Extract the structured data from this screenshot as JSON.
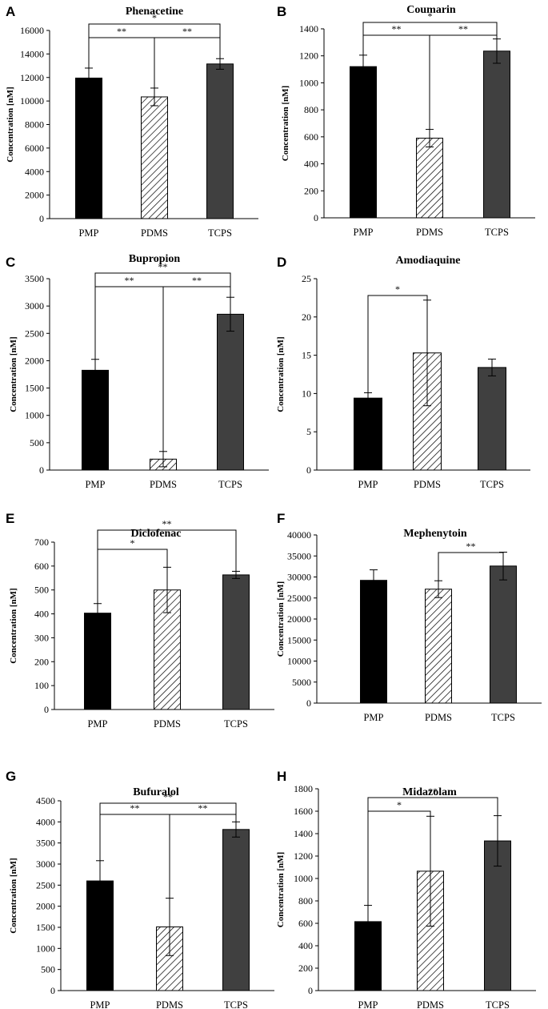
{
  "figure": {
    "category_colors": [
      "#000000",
      "#ffffff",
      "#404040"
    ],
    "hatch_color": "#000000"
  },
  "chart_data": [
    {
      "panel": "A",
      "type": "bar",
      "title": "Phenacetine",
      "ylabel": "Concentration  [nM]",
      "categories": [
        "PMP",
        "PDMS",
        "TCPS"
      ],
      "values": [
        11950,
        10350,
        13150
      ],
      "errors": [
        850,
        750,
        450
      ],
      "ylim": [
        0,
        16000
      ],
      "yticks": [
        0,
        2000,
        4000,
        6000,
        8000,
        10000,
        12000,
        14000,
        16000
      ],
      "significance": [
        {
          "from": 0,
          "to": 2,
          "label": "*"
        },
        {
          "from": 0,
          "to": 1,
          "label": "**"
        },
        {
          "from": 1,
          "to": 2,
          "label": "**"
        }
      ]
    },
    {
      "panel": "B",
      "type": "bar",
      "title": "Coumarin",
      "ylabel": "Concentration  [nM]",
      "categories": [
        "PMP",
        "PDMS",
        "TCPS"
      ],
      "values": [
        1120,
        590,
        1235
      ],
      "errors": [
        85,
        65,
        90
      ],
      "ylim": [
        0,
        1400
      ],
      "yticks": [
        0,
        200,
        400,
        600,
        800,
        1000,
        1200,
        1400
      ],
      "significance": [
        {
          "from": 0,
          "to": 2,
          "label": "*"
        },
        {
          "from": 0,
          "to": 1,
          "label": "**"
        },
        {
          "from": 1,
          "to": 2,
          "label": "**"
        }
      ]
    },
    {
      "panel": "C",
      "type": "bar",
      "title": "Bupropion",
      "ylabel": "Concentration  [nM]",
      "categories": [
        "PMP",
        "PDMS",
        "TCPS"
      ],
      "values": [
        1825,
        200,
        2850
      ],
      "errors": [
        200,
        140,
        310
      ],
      "ylim": [
        0,
        3500
      ],
      "yticks": [
        0,
        500,
        1000,
        1500,
        2000,
        2500,
        3000,
        3500
      ],
      "significance": [
        {
          "from": 0,
          "to": 2,
          "label": "**"
        },
        {
          "from": 0,
          "to": 1,
          "label": "**"
        },
        {
          "from": 1,
          "to": 2,
          "label": "**"
        }
      ]
    },
    {
      "panel": "D",
      "type": "bar",
      "title": "Amodiaquine",
      "ylabel": "Concentration  [nM]",
      "categories": [
        "PMP",
        "PDMS",
        "TCPS"
      ],
      "values": [
        9.4,
        15.3,
        13.4
      ],
      "errors": [
        0.7,
        6.9,
        1.1
      ],
      "ylim": [
        0,
        25
      ],
      "yticks": [
        0,
        5,
        10,
        15,
        20,
        25
      ],
      "significance": [
        {
          "from": 0,
          "to": 1,
          "label": "*"
        }
      ]
    },
    {
      "panel": "E",
      "type": "bar",
      "title": "Diclofenac",
      "ylabel": "Concentration  [nM]",
      "categories": [
        "PMP",
        "PDMS",
        "TCPS"
      ],
      "values": [
        403,
        500,
        563
      ],
      "errors": [
        40,
        95,
        15
      ],
      "ylim": [
        0,
        700
      ],
      "yticks": [
        0,
        100,
        200,
        300,
        400,
        500,
        600,
        700
      ],
      "significance": [
        {
          "from": 0,
          "to": 1,
          "label": "*"
        },
        {
          "from": 0,
          "to": 2,
          "label": "**"
        }
      ]
    },
    {
      "panel": "F",
      "type": "bar",
      "title": "Mephenytoin",
      "ylabel": "Concentration  [nM]",
      "categories": [
        "PMP",
        "PDMS",
        "TCPS"
      ],
      "values": [
        29200,
        27100,
        32600
      ],
      "errors": [
        2500,
        2000,
        3300
      ],
      "ylim": [
        0,
        40000
      ],
      "yticks": [
        0,
        5000,
        10000,
        15000,
        20000,
        25000,
        30000,
        35000,
        40000
      ],
      "significance": [
        {
          "from": 1,
          "to": 2,
          "label": "**"
        }
      ]
    },
    {
      "panel": "G",
      "type": "bar",
      "title": "Bufuralol",
      "ylabel": "Concentration  [nM]",
      "categories": [
        "PMP",
        "PDMS",
        "TCPS"
      ],
      "values": [
        2600,
        1510,
        3820
      ],
      "errors": [
        480,
        680,
        180
      ],
      "ylim": [
        0,
        4500
      ],
      "yticks": [
        0,
        500,
        1000,
        1500,
        2000,
        2500,
        3000,
        3500,
        4000,
        4500
      ],
      "significance": [
        {
          "from": 0,
          "to": 2,
          "label": "**"
        },
        {
          "from": 0,
          "to": 1,
          "label": "**"
        },
        {
          "from": 1,
          "to": 2,
          "label": "**"
        }
      ]
    },
    {
      "panel": "H",
      "type": "bar",
      "title": "Midazolam",
      "ylabel": "Concentration  [nM]",
      "categories": [
        "PMP",
        "PDMS",
        "TCPS"
      ],
      "values": [
        615,
        1065,
        1335
      ],
      "errors": [
        145,
        490,
        225
      ],
      "ylim": [
        0,
        1800
      ],
      "yticks": [
        0,
        200,
        400,
        600,
        800,
        1000,
        1200,
        1400,
        1600,
        1800
      ],
      "significance": [
        {
          "from": 0,
          "to": 1,
          "label": "*"
        },
        {
          "from": 0,
          "to": 2,
          "label": "**"
        }
      ]
    }
  ]
}
